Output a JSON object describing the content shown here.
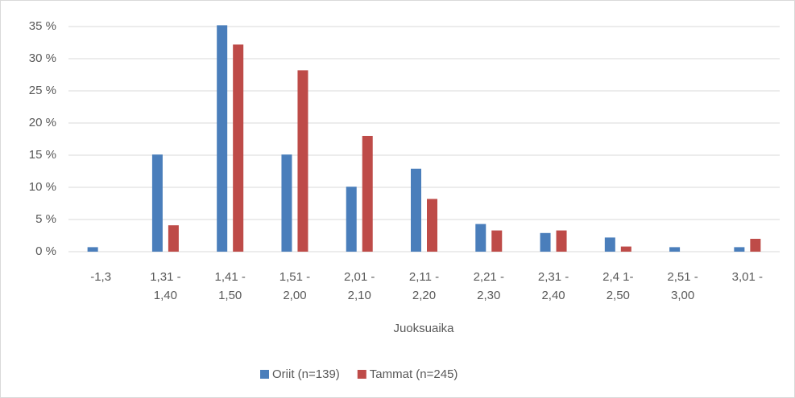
{
  "chart_data": {
    "type": "bar",
    "x_label": "Juoksuaika",
    "categories": [
      "-1,3",
      "1,31 -\n1,40",
      "1,41 -\n1,50",
      "1,51 -\n2,00",
      "2,01 -\n2,10",
      "2,11 -\n2,20",
      "2,21 -\n2,30",
      "2,31 -\n2,40",
      "2,4 1-\n2,50",
      "2,51 -\n3,00",
      "3,01 -"
    ],
    "series": [
      {
        "name": "Oriit (n=139)",
        "color": "#4a7ebb",
        "values": [
          0.7,
          15.1,
          35.2,
          15.1,
          10.1,
          12.9,
          4.3,
          2.9,
          2.2,
          0.7,
          0.7
        ]
      },
      {
        "name": "Tammat (n=245)",
        "color": "#be4b48",
        "values": [
          0,
          4.1,
          32.2,
          28.2,
          18.0,
          8.2,
          3.3,
          3.3,
          0.8,
          0,
          2.0
        ]
      }
    ],
    "ylim": [
      0,
      35
    ],
    "yticks": [
      {
        "value": 0,
        "label": "0 %"
      },
      {
        "value": 5,
        "label": "5 %"
      },
      {
        "value": 10,
        "label": "10 %"
      },
      {
        "value": 15,
        "label": "15 %"
      },
      {
        "value": 20,
        "label": "20 %"
      },
      {
        "value": 25,
        "label": "25 %"
      },
      {
        "value": 30,
        "label": "30 %"
      },
      {
        "value": 35,
        "label": "35 %"
      }
    ],
    "grid": true,
    "legend": "bottom"
  }
}
